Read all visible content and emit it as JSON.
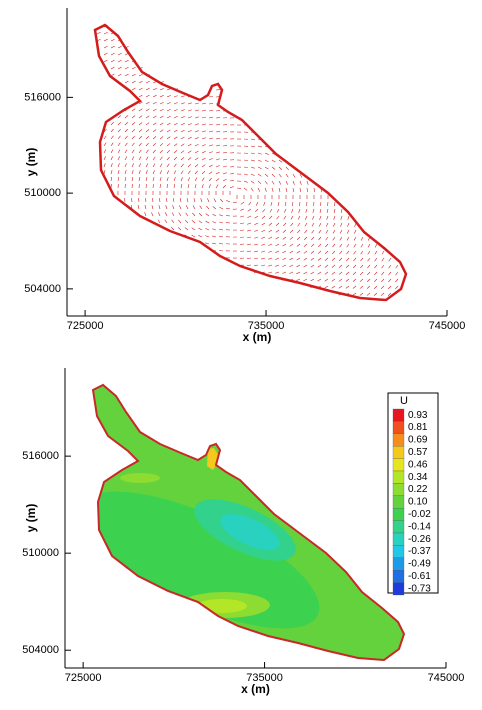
{
  "chart_data": [
    {
      "type": "vector",
      "xlabel": "x (m)",
      "ylabel": "y (m)",
      "color": "#d41c1c",
      "xlim": [
        724000,
        745000
      ],
      "xticks": [
        725000,
        735000,
        745000
      ],
      "ylim": [
        502300,
        521600
      ],
      "yticks": [
        504000,
        510000,
        516000
      ]
    },
    {
      "type": "contour",
      "xlabel": "x (m)",
      "ylabel": "y (m)",
      "color": "#c82828",
      "xlim": [
        724000,
        745000
      ],
      "xticks": [
        725000,
        735000,
        745000
      ],
      "ylim": [
        502900,
        521450
      ],
      "yticks": [
        504000,
        510000,
        516000
      ],
      "legend": {
        "title": "U",
        "levels": [
          0.93,
          0.81,
          0.69,
          0.57,
          0.46,
          0.34,
          0.22,
          {
            "value": 0.1,
            "label": "0.10"
          },
          -0.02,
          -0.14,
          -0.26,
          -0.37,
          -0.49,
          -0.61,
          -0.73
        ],
        "colors": [
          "#e8141e",
          "#f0501e",
          "#f58c1e",
          "#f5c81e",
          "#e6e61e",
          "#b4e628",
          "#8cdc32",
          "#64d23c",
          "#3cd250",
          "#32d28c",
          "#28d2be",
          "#1ec8e6",
          "#1e9be6",
          "#1e6ee6",
          "#1e3cdc"
        ]
      }
    }
  ]
}
